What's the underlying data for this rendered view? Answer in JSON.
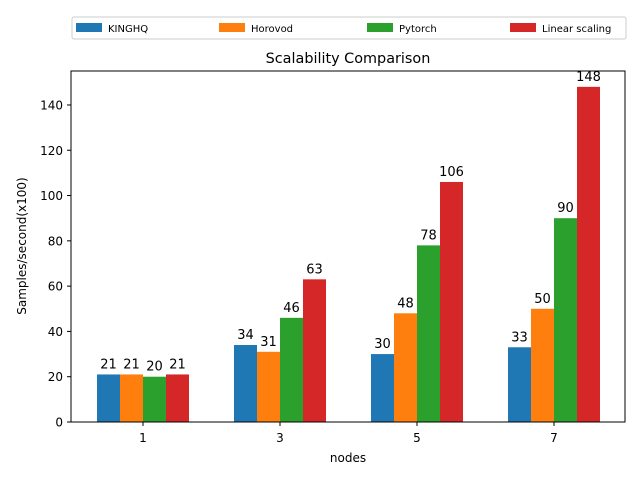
{
  "chart_data": {
    "type": "bar",
    "title": "Scalability Comparison",
    "xlabel": "nodes",
    "ylabel": "Samples/second(x100)",
    "categories": [
      "1",
      "3",
      "5",
      "7"
    ],
    "ylim": [
      0,
      155
    ],
    "yticks": [
      0,
      20,
      40,
      60,
      80,
      100,
      120,
      140
    ],
    "grid": false,
    "legend_position": "top, above plot, single row",
    "series": [
      {
        "name": "KINGHQ",
        "color": "#1f77b4",
        "values": [
          21,
          34,
          30,
          33
        ]
      },
      {
        "name": "Horovod",
        "color": "#ff7f0e",
        "values": [
          21,
          31,
          48,
          50
        ]
      },
      {
        "name": "Pytorch",
        "color": "#2ca02c",
        "values": [
          20,
          46,
          78,
          90
        ]
      },
      {
        "name": "Linear scaling",
        "color": "#d62728",
        "values": [
          21,
          63,
          106,
          148
        ]
      }
    ]
  }
}
